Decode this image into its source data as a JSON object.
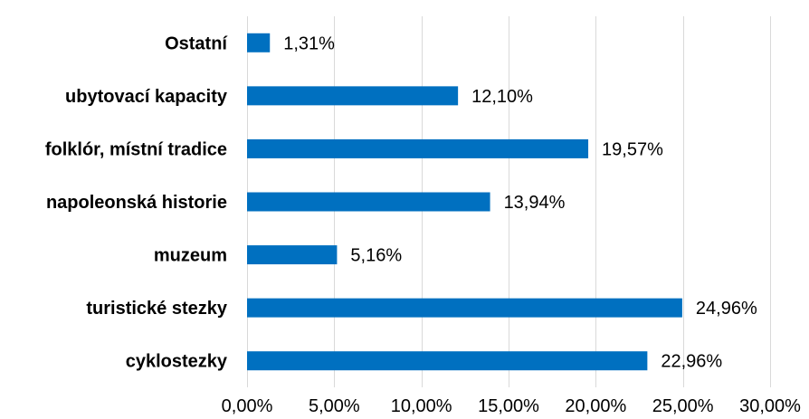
{
  "chart_data": {
    "type": "bar",
    "orientation": "horizontal",
    "categories": [
      "Ostatní",
      "ubytovací kapacity",
      "folklór, místní tradice",
      "napoleonská historie",
      "muzeum",
      "turistické stezky",
      "cyklostezky"
    ],
    "values": [
      1.31,
      12.1,
      19.57,
      13.94,
      5.16,
      24.96,
      22.96
    ],
    "value_labels": [
      "1,31%",
      "12,10%",
      "19,57%",
      "13,94%",
      "5,16%",
      "24,96%",
      "22,96%"
    ],
    "x_ticks": [
      0,
      5,
      10,
      15,
      20,
      25,
      30
    ],
    "x_tick_labels": [
      "0,00%",
      "5,00%",
      "10,00%",
      "15,00%",
      "20,00%",
      "25,00%",
      "30,00%"
    ],
    "xlim": [
      0,
      30
    ],
    "grid": true,
    "bar_color": "#0070C0",
    "grid_color": "#D9D9D9",
    "title": "",
    "xlabel": "",
    "ylabel": ""
  }
}
